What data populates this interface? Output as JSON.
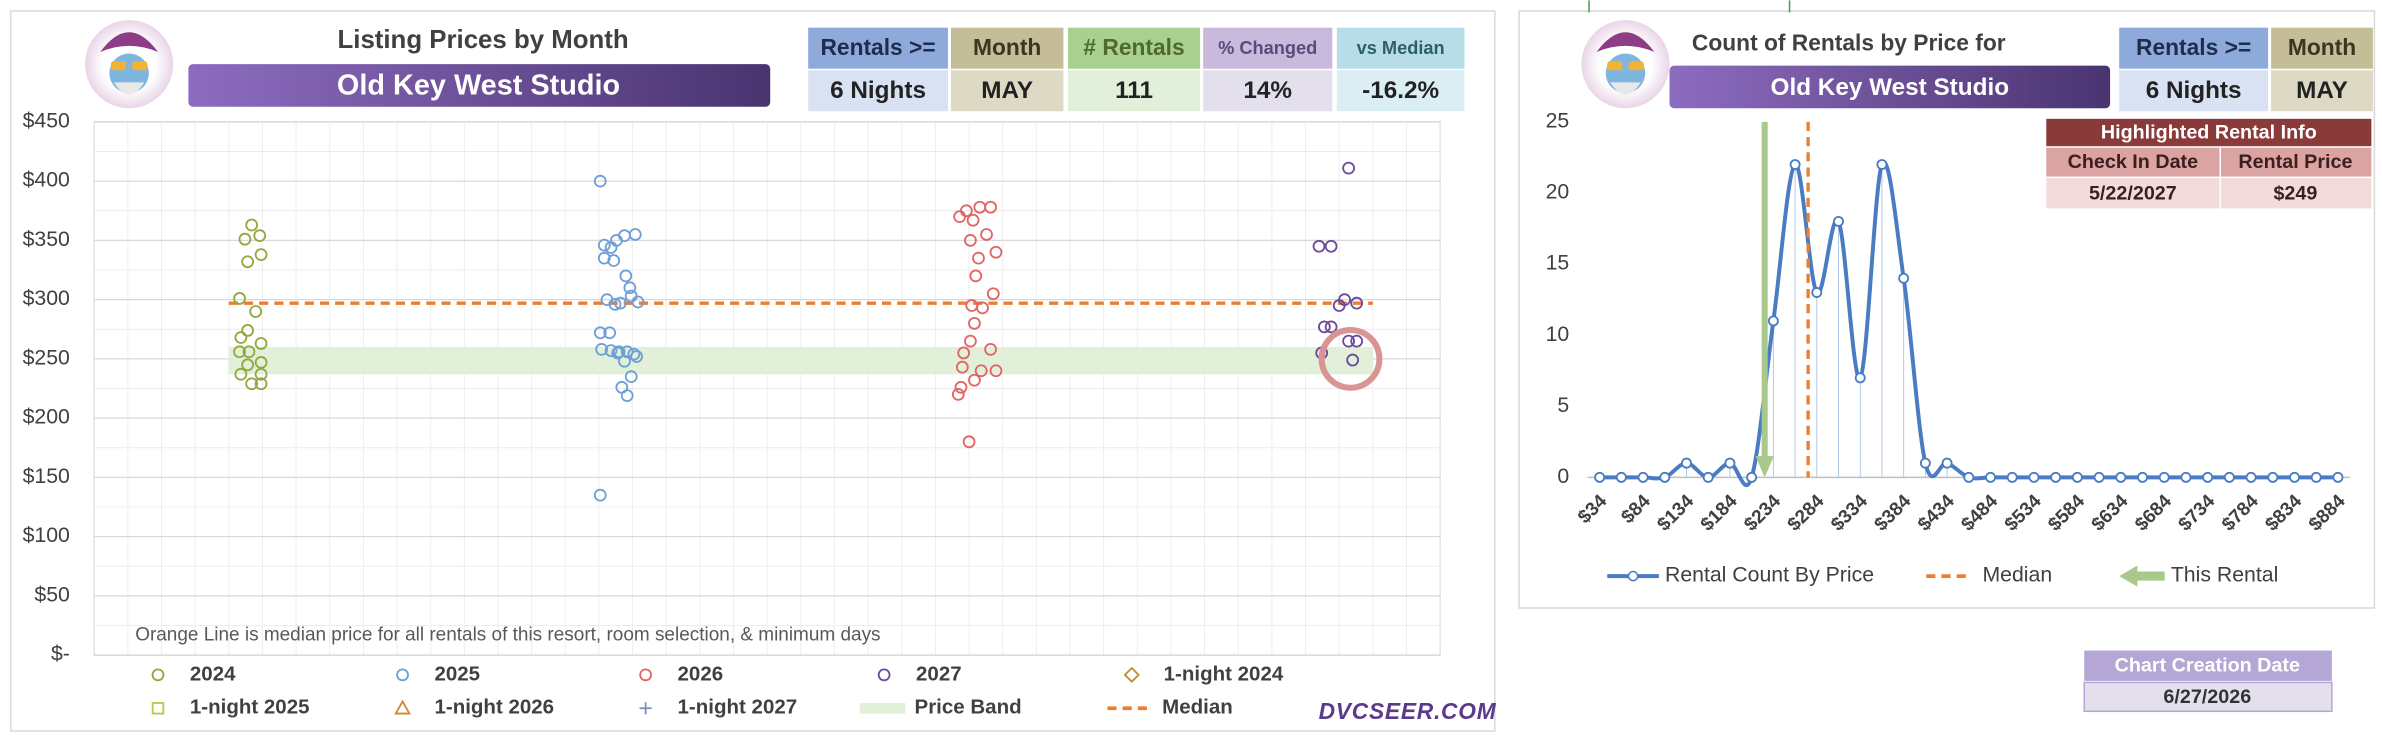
{
  "chart_data": [
    {
      "type": "scatter",
      "title": "Listing Prices by Month",
      "subtitle": "Old Key West Studio",
      "annotation": "Orange Line is median price for all rentals of this resort, room selection, & minimum days",
      "xlim": [
        0,
        100
      ],
      "ylim": [
        0,
        450
      ],
      "grid": true,
      "yticks": [
        {
          "value": 0,
          "label": "$-"
        },
        {
          "value": 50,
          "label": "$50"
        },
        {
          "value": 100,
          "label": "$100"
        },
        {
          "value": 150,
          "label": "$150"
        },
        {
          "value": 200,
          "label": "$200"
        },
        {
          "value": 250,
          "label": "$250"
        },
        {
          "value": 300,
          "label": "$300"
        },
        {
          "value": 350,
          "label": "$350"
        },
        {
          "value": 400,
          "label": "$400"
        },
        {
          "value": 450,
          "label": "$450"
        }
      ],
      "series": [
        {
          "name": "2024",
          "color": "#93a83e",
          "marker": "circle",
          "x": [
            11.7,
            11.2,
            12.3,
            12.4,
            11.4,
            10.8,
            12.0,
            11.4,
            10.9,
            12.4,
            10.8,
            11.5,
            12.4,
            11.4,
            10.9,
            12.4,
            11.7,
            12.4
          ],
          "values": [
            363,
            351,
            354,
            338,
            332,
            301,
            290,
            274,
            268,
            263,
            256,
            256,
            247,
            245,
            237,
            237,
            229,
            229
          ]
        },
        {
          "name": "2025",
          "color": "#6f9fd8",
          "marker": "circle",
          "x": [
            37.6,
            40.2,
            39.4,
            38.8,
            37.9,
            38.4,
            37.9,
            38.6,
            39.5,
            39.8,
            39.9,
            38.1,
            40.4,
            39.1,
            38.7,
            37.6,
            38.3,
            37.7,
            38.4,
            39.0,
            39.6,
            38.9,
            40.1,
            40.3,
            39.4,
            39.2,
            39.6,
            39.9,
            37.6
          ],
          "values": [
            400,
            355,
            354,
            350,
            346,
            344,
            335,
            333,
            320,
            310,
            303,
            300,
            298,
            297,
            296,
            272,
            272,
            258,
            257,
            256,
            256,
            255,
            254,
            252,
            248,
            226,
            219,
            235,
            135
          ]
        },
        {
          "name": "2026",
          "color": "#e06666",
          "marker": "circle",
          "x": [
            65.8,
            66.6,
            64.8,
            64.3,
            65.3,
            66.3,
            65.1,
            67.0,
            65.7,
            65.5,
            66.8,
            65.2,
            66.0,
            65.4,
            65.1,
            66.6,
            64.6,
            64.5,
            65.9,
            67.0,
            65.4,
            64.4,
            64.2,
            65.0
          ],
          "values": [
            378,
            378,
            375,
            370,
            367,
            355,
            350,
            340,
            335,
            320,
            305,
            295,
            293,
            280,
            265,
            258,
            255,
            243,
            240,
            240,
            232,
            226,
            220,
            180
          ]
        },
        {
          "name": "2027",
          "color": "#6b4b9a",
          "marker": "circle",
          "x": [
            93.2,
            91.0,
            91.9,
            92.9,
            93.8,
            92.5,
            91.4,
            91.9,
            93.2,
            93.8,
            91.2,
            93.5
          ],
          "values": [
            411,
            345,
            345,
            300,
            297,
            295,
            277,
            277,
            265,
            265,
            255,
            249
          ]
        },
        {
          "name": "1-night 2024",
          "color": "#b8912e",
          "marker": "diamond",
          "x": [],
          "values": []
        },
        {
          "name": "1-night 2025",
          "color": "#b5c94f",
          "marker": "square",
          "x": [],
          "values": []
        },
        {
          "name": "1-night 2026",
          "color": "#d9862b",
          "marker": "triangle",
          "x": [],
          "values": []
        },
        {
          "name": "1-night 2027",
          "color": "#7a8fb5",
          "marker": "plus",
          "x": [],
          "values": []
        },
        {
          "name": "Price Band",
          "color": "#e2efd9",
          "kind": "band",
          "x": [
            10,
            95
          ],
          "values": [
            237,
            260
          ]
        },
        {
          "name": "Median",
          "color": "#ed7d31",
          "kind": "dashed",
          "x": [
            10,
            95
          ],
          "values": [
            297,
            297
          ]
        }
      ]
    },
    {
      "type": "line",
      "title": "Count of Rentals by Price for",
      "subtitle": "Old Key West Studio",
      "categories": [
        "$34",
        null,
        "$84",
        null,
        "$134",
        null,
        "$184",
        null,
        "$234",
        null,
        "$284",
        null,
        "$334",
        null,
        "$384",
        null,
        "$434",
        null,
        "$484",
        null,
        "$534",
        null,
        "$584",
        null,
        "$634",
        null,
        "$684",
        null,
        "$734",
        null,
        "$784",
        null,
        "$834",
        null,
        "$884"
      ],
      "ylim": [
        0,
        25
      ],
      "yticks": [
        0,
        5,
        10,
        15,
        20,
        25
      ],
      "series": [
        {
          "name": "Rental Count By Price",
          "color": "#4a7cc4",
          "values": [
            0,
            0,
            0,
            0,
            1,
            0,
            1,
            0,
            11,
            22,
            13,
            18,
            7,
            22,
            14,
            1,
            1,
            0,
            0,
            0,
            0,
            0,
            0,
            0,
            0,
            0,
            0,
            0,
            0,
            0,
            0,
            0,
            0,
            0,
            0
          ]
        }
      ],
      "markers": [
        {
          "name": "Median",
          "color": "#ed7d31",
          "position": 9.6,
          "style": "dashed"
        },
        {
          "name": "This Rental",
          "color": "#a9c98c",
          "position": 7.6,
          "style": "arrow"
        }
      ]
    }
  ],
  "left_stats": {
    "headers": [
      "Rentals >=",
      "Month",
      "# Rentals",
      "% Changed",
      "vs Median"
    ],
    "values": [
      "6 Nights",
      "MAY",
      "111",
      "14%",
      "-16.2%"
    ]
  },
  "watermark": "DVCSEER.COM",
  "right_stats": {
    "headers": [
      "Rentals >=",
      "Month"
    ],
    "values": [
      "6 Nights",
      "MAY"
    ]
  },
  "highlight": {
    "title": "Highlighted Rental Info",
    "headers": [
      "Check In Date",
      "Rental Price"
    ],
    "values": [
      "5/22/2027",
      "$249"
    ]
  },
  "footer": {
    "label": "Chart Creation Date",
    "value": "6/27/2026"
  }
}
